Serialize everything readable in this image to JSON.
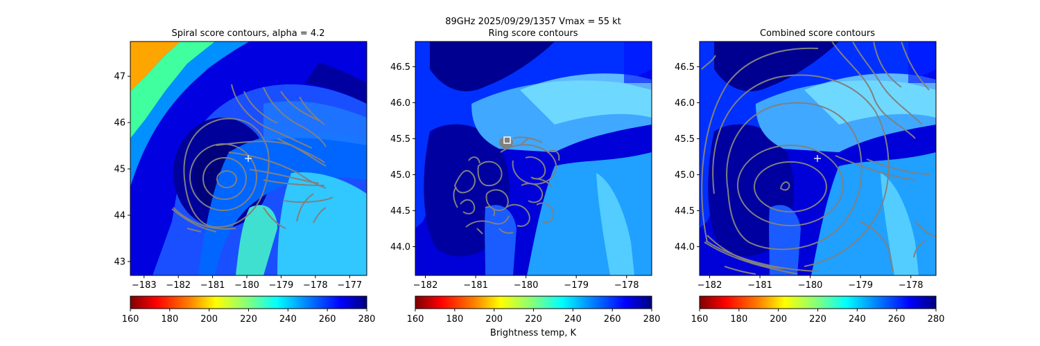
{
  "figure": {
    "suptitle": "89GHz  2025/09/29/1357    Vmax = 55 kt",
    "colorbar_label": "Brightness temp, K"
  },
  "colors": {
    "contour": "#808080",
    "center_marker": "#ffffff",
    "colormap": "jet_r",
    "colormap_stops": [
      "#800000",
      "#ff0000",
      "#ff8000",
      "#ffff00",
      "#80ff80",
      "#00ffff",
      "#0080ff",
      "#0000ff",
      "#000080"
    ]
  },
  "chart_data": [
    {
      "type": "heatmap",
      "title": "Spiral score contours, alpha =  4.2",
      "xlim": [
        -183.4,
        -176.5
      ],
      "ylim": [
        42.7,
        47.75
      ],
      "xticks": [
        -183,
        -182,
        -181,
        -180,
        -179,
        -178,
        -177
      ],
      "yticks": [
        43,
        44,
        45,
        46,
        47
      ],
      "center_marker": [
        -179.95,
        45.23
      ],
      "colorbar": {
        "range": [
          160,
          280
        ],
        "ticks": [
          160,
          180,
          200,
          220,
          240,
          260,
          280
        ]
      },
      "contours": "concentric ellipses centered near (-180.6, 44.8) plus parallel curved bands to the northeast"
    },
    {
      "type": "heatmap",
      "title": "Ring score contours",
      "xlim": [
        -182.2,
        -177.5
      ],
      "ylim": [
        43.6,
        46.85
      ],
      "xticks": [
        -182,
        -181,
        -180,
        -179,
        -178
      ],
      "yticks": [
        44.0,
        44.5,
        45.0,
        45.5,
        46.0,
        46.5
      ],
      "center_marker": [
        -180.35,
        45.48
      ],
      "colorbar": {
        "range": [
          160,
          280
        ],
        "ticks": [
          160,
          180,
          200,
          220,
          240,
          260,
          280
        ]
      },
      "contours": "irregular noisy contours between lon -181.5 and -179.7, lat 44.2 to 45.6"
    },
    {
      "type": "heatmap",
      "title": "Combined score contours",
      "xlim": [
        -182.2,
        -177.5
      ],
      "ylim": [
        43.6,
        46.85
      ],
      "xticks": [
        -182,
        -181,
        -180,
        -179,
        -178
      ],
      "yticks": [
        44.0,
        44.5,
        45.0,
        45.5,
        46.0,
        46.5
      ],
      "center_marker": [
        -179.87,
        45.23
      ],
      "colorbar": {
        "range": [
          160,
          280
        ],
        "ticks": [
          160,
          180,
          200,
          220,
          240,
          260,
          280
        ]
      },
      "contours": "concentric rings centered near (-180.5, 44.85)"
    }
  ]
}
